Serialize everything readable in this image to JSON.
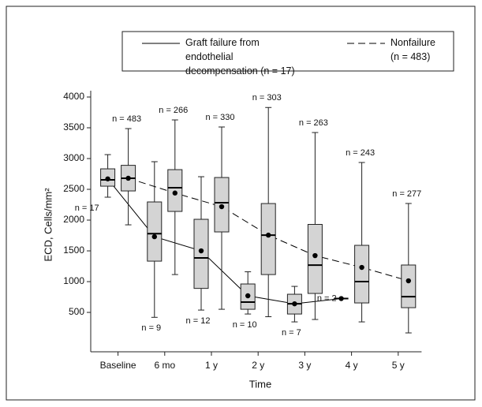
{
  "chart_data": {
    "type": "box",
    "x_label": "Time",
    "y_label": "ECD, Cells/mm²",
    "categories": [
      "Baseline",
      "6 mo",
      "1 y",
      "2 y",
      "3 y",
      "4 y",
      "5 y"
    ],
    "ylim": [
      -140,
      4000
    ],
    "yticks": [
      500,
      1000,
      1500,
      2000,
      2500,
      3000,
      3500,
      4000
    ],
    "series": [
      {
        "name": "Graft failure from endothelial decompensation (n = 17)",
        "color": "#000000",
        "line_style": "solid",
        "values": [
          2670,
          1730,
          1500,
          770,
          640,
          725,
          null
        ],
        "medians": [
          2654,
          1780,
          1385,
          667,
          641,
          725,
          null
        ],
        "q1": [
          2551,
          1333,
          890,
          551,
          474,
          null,
          null
        ],
        "q3": [
          2833,
          2295,
          2013,
          962,
          795,
          null,
          null
        ],
        "whisker_low": [
          2372,
          420,
          538,
          474,
          346,
          null,
          null
        ],
        "whisker_high": [
          3064,
          2949,
          2705,
          1160,
          923,
          null,
          null
        ],
        "n_labels": [
          "n = 17",
          "n = 9",
          "n = 12",
          "n = 10",
          "n = 7",
          "n = 2",
          null
        ]
      },
      {
        "name": "Nonfailure (n = 483)",
        "color": "#000000",
        "line_style": "dashed",
        "values": [
          2680,
          2440,
          2218,
          1756,
          1423,
          1231,
          1013
        ],
        "medians": [
          2680,
          2526,
          2282,
          1756,
          1269,
          1000,
          756
        ],
        "q1": [
          2474,
          2141,
          1808,
          1115,
          808,
          654,
          577
        ],
        "q3": [
          2890,
          2820,
          2692,
          2269,
          1930,
          1590,
          1270
        ],
        "whisker_low": [
          1923,
          1115,
          551,
          430,
          385,
          346,
          167
        ],
        "whisker_high": [
          3487,
          3628,
          3513,
          3830,
          3423,
          2936,
          2270
        ],
        "n_labels": [
          "n = 483",
          "n = 266",
          "n = 330",
          "n = 303",
          "n = 263",
          "n = 243",
          "n = 277"
        ]
      }
    ]
  }
}
